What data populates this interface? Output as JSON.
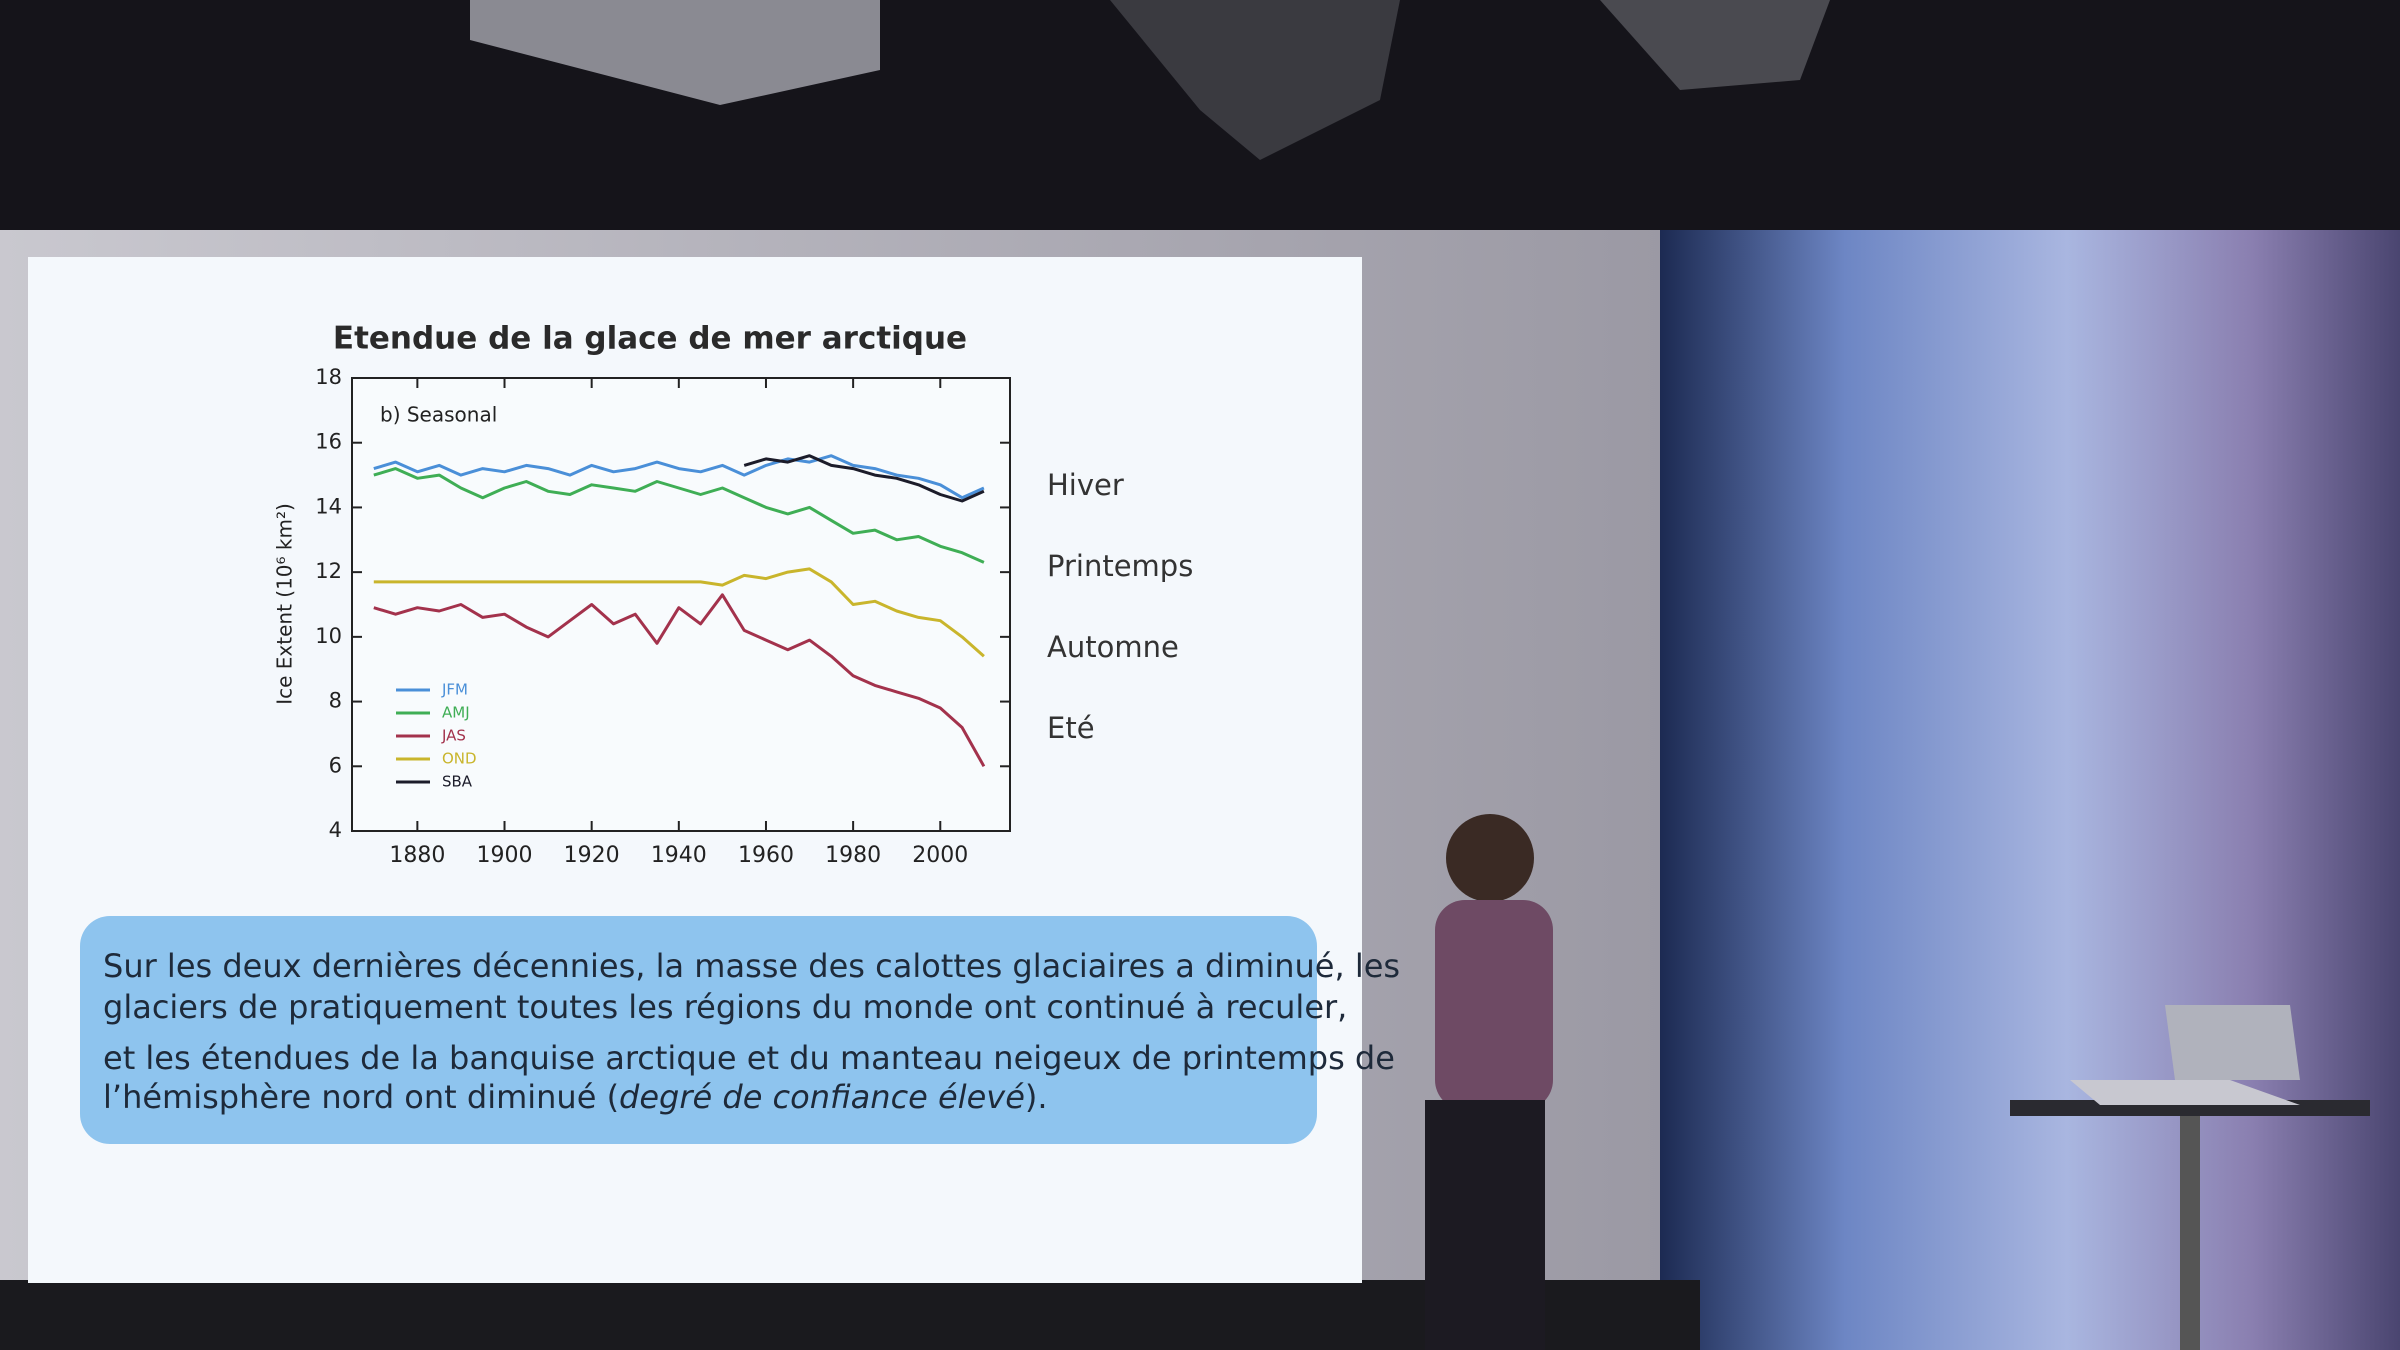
{
  "chart_data": {
    "type": "line",
    "title": "Etendue de la glace de mer arctique",
    "panel_label": "b) Seasonal",
    "y_label": "Ice Extent (10⁶ km²)",
    "x": [
      1870,
      1875,
      1880,
      1885,
      1890,
      1895,
      1900,
      1905,
      1910,
      1915,
      1920,
      1925,
      1930,
      1935,
      1940,
      1945,
      1950,
      1955,
      1960,
      1965,
      1970,
      1975,
      1980,
      1985,
      1990,
      1995,
      2000,
      2005,
      2010
    ],
    "series": [
      {
        "name": "JFM",
        "color": "#4a8fd8",
        "values": [
          15.2,
          15.4,
          15.1,
          15.3,
          15.0,
          15.2,
          15.1,
          15.3,
          15.2,
          15.0,
          15.3,
          15.1,
          15.2,
          15.4,
          15.2,
          15.1,
          15.3,
          15.0,
          15.3,
          15.5,
          15.4,
          15.6,
          15.3,
          15.2,
          15.0,
          14.9,
          14.7,
          14.3,
          14.6
        ]
      },
      {
        "name": "AMJ",
        "color": "#3fae55",
        "values": [
          15.0,
          15.2,
          14.9,
          15.0,
          14.6,
          14.3,
          14.6,
          14.8,
          14.5,
          14.4,
          14.7,
          14.6,
          14.5,
          14.8,
          14.6,
          14.4,
          14.6,
          14.3,
          14.0,
          13.8,
          14.0,
          13.6,
          13.2,
          13.3,
          13.0,
          13.1,
          12.8,
          12.6,
          12.3
        ]
      },
      {
        "name": "JAS",
        "color": "#a3324c",
        "values": [
          10.9,
          10.7,
          10.9,
          10.8,
          11.0,
          10.6,
          10.7,
          10.3,
          10.0,
          10.5,
          11.0,
          10.4,
          10.7,
          9.8,
          10.9,
          10.4,
          11.3,
          10.2,
          9.9,
          9.6,
          9.9,
          9.4,
          8.8,
          8.5,
          8.3,
          8.1,
          7.8,
          7.2,
          6.0
        ]
      },
      {
        "name": "OND",
        "color": "#c9b52c",
        "values": [
          11.7,
          11.7,
          11.7,
          11.7,
          11.7,
          11.7,
          11.7,
          11.7,
          11.7,
          11.7,
          11.7,
          11.7,
          11.7,
          11.7,
          11.7,
          11.7,
          11.6,
          11.9,
          11.8,
          12.0,
          12.1,
          11.7,
          11.0,
          11.1,
          10.8,
          10.6,
          10.5,
          10.0,
          9.4
        ]
      },
      {
        "name": "SBA",
        "color": "#1c1c2a",
        "values": [
          null,
          null,
          null,
          null,
          null,
          null,
          null,
          null,
          null,
          null,
          null,
          null,
          null,
          null,
          null,
          null,
          null,
          15.3,
          15.5,
          15.4,
          15.6,
          15.3,
          15.2,
          15.0,
          14.9,
          14.7,
          14.4,
          14.2,
          14.5
        ]
      }
    ],
    "xlim": [
      1865,
      2016
    ],
    "xticks": [
      1880,
      1900,
      1920,
      1940,
      1960,
      1980,
      2000
    ],
    "ylim": [
      4,
      18
    ],
    "yticks": [
      4,
      6,
      8,
      10,
      12,
      14,
      16,
      18
    ],
    "annotations": [
      "Hiver",
      "Printemps",
      "Automne",
      "Eté"
    ]
  },
  "caption": {
    "lines": [
      "Sur les deux dernières décennies, la masse des calottes glaciaires a diminué, les",
      "glaciers de pratiquement toutes les régions du monde ont continué à reculer,",
      "et les étendues de la banquise arctique et du manteau neigeux de printemps de"
    ],
    "last_line": [
      "l’hémisphère nord ont diminué (",
      "degré de confiance élevé",
      ")."
    ]
  }
}
